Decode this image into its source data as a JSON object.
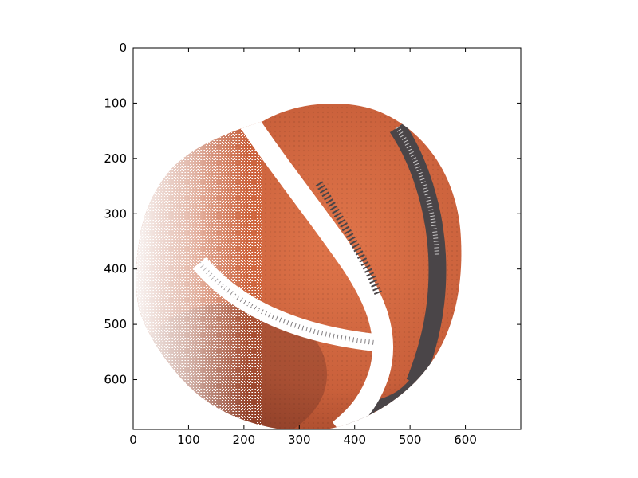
{
  "image": {
    "subject": "basketball",
    "ball_color": "#c9603b",
    "ball_shadow_color": "#8e3a22",
    "seam_color": "#4a4548",
    "background_color": "#ffffff"
  },
  "axes": {
    "x_ticks": [
      "0",
      "100",
      "200",
      "300",
      "400",
      "500",
      "600"
    ],
    "y_ticks": [
      "0",
      "100",
      "200",
      "300",
      "400",
      "500",
      "600"
    ],
    "x_range": [
      0,
      700
    ],
    "y_range": [
      690,
      0
    ],
    "grid": false
  }
}
